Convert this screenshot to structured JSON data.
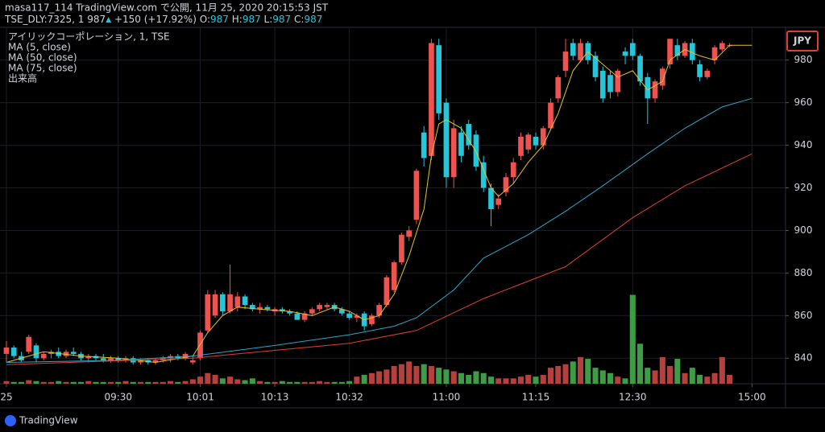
{
  "header": {
    "line1": "masa117_114 TradingView.com で公開, 11月 25, 2020 20:15:53 JST",
    "symbol": "TSE_DLY:7325, 1",
    "last": "987",
    "arrow": "▲",
    "change": "+150 (+17.92%)",
    "o_label": "O:",
    "o": "987",
    "h_label": "H:",
    "h": "987",
    "l_label": "L:",
    "l": "987",
    "c_label": "C:",
    "c": "987"
  },
  "legend": {
    "title": "アイリックコーポレーション, 1, TSE",
    "volume": "出来高"
  },
  "footer": {
    "brand": "TradingView"
  },
  "chart_data": {
    "type": "candlestick",
    "currency": "JPY",
    "up_color": "#ef5350",
    "down_color": "#26c6da",
    "volume_up_color": "#b5403d",
    "volume_down_color": "#3f9c46",
    "xlim": [
      -0.86,
      104.5
    ],
    "xticks": [
      {
        "value": 0,
        "label": "25"
      },
      {
        "value": 15,
        "label": "09:30"
      },
      {
        "value": 26,
        "label": "10:01"
      },
      {
        "value": 36,
        "label": "10:13"
      },
      {
        "value": 46,
        "label": "10:32"
      },
      {
        "value": 59,
        "label": "11:00"
      },
      {
        "value": 71,
        "label": "11:15"
      },
      {
        "value": 84,
        "label": "12:30"
      },
      {
        "value": 100,
        "label": "15:00"
      }
    ],
    "ylim": [
      828,
      995
    ],
    "yticks": [
      840,
      860,
      880,
      900,
      920,
      940,
      960,
      980
    ],
    "grid": true,
    "ohlc": [
      [
        842,
        848,
        838,
        845
      ],
      [
        845,
        846,
        840,
        841
      ],
      [
        841,
        843,
        838,
        839
      ],
      [
        843,
        851,
        842,
        850
      ],
      [
        846,
        847,
        838,
        840
      ],
      [
        840,
        843,
        839,
        842
      ],
      [
        842,
        844,
        840,
        843
      ],
      [
        843,
        845,
        840,
        841
      ],
      [
        841,
        844,
        840,
        843
      ],
      [
        843,
        845,
        841,
        842
      ],
      [
        842,
        843,
        839,
        840
      ],
      [
        840,
        842,
        838,
        841
      ],
      [
        841,
        842,
        839,
        840
      ],
      [
        840,
        842,
        838,
        839
      ],
      [
        839,
        841,
        838,
        840
      ],
      [
        840,
        841,
        838,
        839
      ],
      [
        839,
        841,
        838,
        840
      ],
      [
        840,
        841,
        837,
        838
      ],
      [
        838,
        840,
        837,
        839
      ],
      [
        839,
        840,
        837,
        838
      ],
      [
        838,
        840,
        837,
        839
      ],
      [
        839,
        841,
        838,
        840
      ],
      [
        840,
        842,
        838,
        841
      ],
      [
        841,
        842,
        839,
        840
      ],
      [
        840,
        843,
        839,
        842
      ],
      [
        838,
        841,
        837,
        839
      ],
      [
        840,
        853,
        839,
        852
      ],
      [
        853,
        872,
        852,
        870
      ],
      [
        860,
        872,
        859,
        870
      ],
      [
        870,
        871,
        860,
        862
      ],
      [
        862,
        884,
        861,
        870
      ],
      [
        864,
        871,
        862,
        869
      ],
      [
        869,
        870,
        863,
        865
      ],
      [
        865,
        866,
        862,
        863
      ],
      [
        863,
        866,
        861,
        864
      ],
      [
        864,
        865,
        862,
        863
      ],
      [
        862,
        864,
        860,
        863
      ],
      [
        863,
        864,
        861,
        862
      ],
      [
        862,
        863,
        860,
        861
      ],
      [
        861,
        862,
        858,
        858
      ],
      [
        858,
        862,
        857,
        861
      ],
      [
        861,
        864,
        860,
        863
      ],
      [
        863,
        866,
        862,
        865
      ],
      [
        864,
        866,
        863,
        865
      ],
      [
        865,
        866,
        862,
        863
      ],
      [
        863,
        864,
        860,
        861
      ],
      [
        861,
        862,
        858,
        859
      ],
      [
        859,
        861,
        857,
        860
      ],
      [
        861,
        862,
        853,
        855
      ],
      [
        856,
        861,
        855,
        860
      ],
      [
        860,
        866,
        859,
        865
      ],
      [
        865,
        879,
        864,
        878
      ],
      [
        872,
        886,
        871,
        885
      ],
      [
        885,
        899,
        884,
        898
      ],
      [
        897,
        902,
        895,
        900
      ],
      [
        905,
        929,
        903,
        928
      ],
      [
        946,
        949,
        930,
        934
      ],
      [
        935,
        990,
        933,
        988
      ],
      [
        987,
        990,
        952,
        955
      ],
      [
        960,
        962,
        920,
        925
      ],
      [
        925,
        952,
        920,
        948
      ],
      [
        946,
        949,
        932,
        935
      ],
      [
        950,
        952,
        938,
        940
      ],
      [
        945,
        947,
        928,
        930
      ],
      [
        932,
        935,
        918,
        920
      ],
      [
        920,
        922,
        902,
        910
      ],
      [
        912,
        917,
        910,
        915
      ],
      [
        918,
        927,
        916,
        925
      ],
      [
        925,
        934,
        922,
        932
      ],
      [
        935,
        946,
        933,
        944
      ],
      [
        938,
        946,
        936,
        945
      ],
      [
        944,
        946,
        938,
        940
      ],
      [
        940,
        949,
        938,
        948
      ],
      [
        948,
        962,
        947,
        960
      ],
      [
        962,
        973,
        960,
        972
      ],
      [
        975,
        990,
        972,
        984
      ],
      [
        988,
        990,
        980,
        982
      ],
      [
        980,
        990,
        979,
        988
      ],
      [
        988,
        989,
        978,
        980
      ],
      [
        982,
        984,
        970,
        972
      ],
      [
        975,
        977,
        960,
        962
      ],
      [
        973,
        975,
        962,
        965
      ],
      [
        965,
        976,
        963,
        975
      ],
      [
        984,
        986,
        978,
        982
      ],
      [
        988,
        990,
        980,
        982
      ],
      [
        982,
        983,
        968,
        970
      ],
      [
        972,
        974,
        950,
        962
      ],
      [
        962,
        971,
        960,
        970
      ],
      [
        968,
        977,
        966,
        976
      ],
      [
        978,
        990,
        976,
        990
      ],
      [
        987,
        990,
        980,
        982
      ],
      [
        982,
        989,
        981,
        988
      ],
      [
        988,
        990,
        978,
        980
      ],
      [
        978,
        980,
        970,
        972
      ],
      [
        972,
        976,
        971,
        975
      ],
      [
        980,
        987,
        978,
        986
      ],
      [
        985,
        989,
        984,
        988
      ],
      [
        987,
        988,
        986,
        987
      ]
    ],
    "volume_ylim": [
      0,
      400
    ],
    "volume": [
      3,
      2,
      2,
      4,
      3,
      2,
      2,
      3,
      2,
      2,
      2,
      3,
      2,
      2,
      2,
      2,
      3,
      2,
      2,
      2,
      2,
      2,
      3,
      2,
      3,
      5,
      8,
      12,
      10,
      6,
      8,
      5,
      4,
      6,
      3,
      2,
      2,
      3,
      2,
      2,
      2,
      2,
      3,
      2,
      2,
      2,
      3,
      8,
      10,
      12,
      14,
      16,
      20,
      22,
      25,
      20,
      22,
      20,
      18,
      16,
      14,
      12,
      10,
      14,
      12,
      8,
      6,
      6,
      6,
      8,
      10,
      8,
      10,
      18,
      20,
      22,
      25,
      30,
      28,
      18,
      15,
      12,
      8,
      6,
      100,
      45,
      18,
      15,
      30,
      20,
      28,
      12,
      18,
      10,
      8,
      12,
      30,
      10
    ],
    "series": [
      {
        "name": "MA (5, close)",
        "color": "#e6c229",
        "x": [
          0,
          5,
          10,
          15,
          20,
          25,
          27,
          29,
          31,
          34,
          38,
          41,
          44,
          46,
          48,
          50,
          52,
          54,
          56,
          57,
          58,
          59,
          61,
          63,
          65,
          66,
          68,
          70,
          72,
          74,
          76,
          78,
          80,
          82,
          84,
          86,
          88,
          89,
          91,
          93,
          95,
          97,
          100
        ],
        "values": [
          838,
          843,
          841,
          840,
          838,
          841,
          852,
          860,
          864,
          863,
          862,
          860,
          864,
          862,
          858,
          860,
          870,
          888,
          910,
          935,
          950,
          952,
          948,
          937,
          920,
          916,
          922,
          932,
          940,
          955,
          975,
          984,
          978,
          972,
          975,
          966,
          970,
          980,
          985,
          982,
          980,
          987,
          987
        ]
      },
      {
        "name": "MA (50, close)",
        "color": "#2aa7c9",
        "x": [
          0,
          15,
          25,
          36,
          46,
          52,
          55,
          60,
          64,
          70,
          75,
          80,
          86,
          91,
          96,
          100
        ],
        "values": [
          838,
          839,
          841,
          846,
          851,
          855,
          859,
          872,
          887,
          898,
          909,
          921,
          936,
          948,
          958,
          962
        ]
      },
      {
        "name": "MA (75, close)",
        "color": "#e0402f",
        "x": [
          0,
          25,
          46,
          55,
          64,
          75,
          84,
          91,
          100
        ],
        "values": [
          837,
          840,
          847,
          853,
          868,
          883,
          906,
          921,
          936
        ]
      }
    ]
  }
}
